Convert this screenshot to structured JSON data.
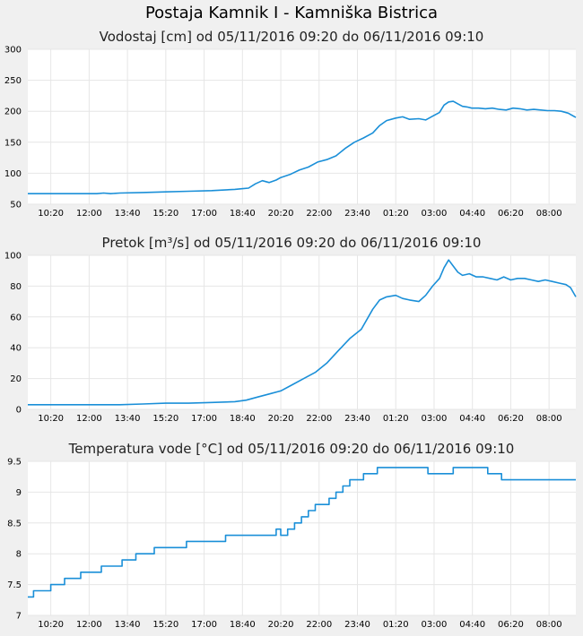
{
  "page": {
    "title": "Postaja Kamnik I - Kamniška Bistrica"
  },
  "colors": {
    "background": "#f0f0f0",
    "plot": "#ffffff",
    "line": "#1a8fd8",
    "grid": "#e6e6e6"
  },
  "chart_data": [
    {
      "type": "line",
      "title": "Vodostaj [cm] od 05/11/2016 09:20 do 06/11/2016 09:10",
      "xlabel": "",
      "ylabel": "",
      "ylim": [
        50,
        300
      ],
      "yticks": [
        50,
        100,
        150,
        200,
        250,
        300
      ],
      "ytick_labels": [
        "50",
        "100",
        "150",
        "200",
        "250",
        "300"
      ],
      "xlim": [
        0,
        23.83
      ],
      "xticks": [
        1,
        2.6667,
        4.3333,
        6,
        7.6667,
        9.3333,
        11,
        12.6667,
        14.3333,
        16,
        17.6667,
        19.3333,
        21,
        22.6667
      ],
      "xtick_labels": [
        "10:20",
        "12:00",
        "13:40",
        "15:20",
        "17:00",
        "18:40",
        "20:20",
        "22:00",
        "23:40",
        "01:20",
        "03:00",
        "04:40",
        "06:20",
        "08:00"
      ],
      "series": [
        {
          "name": "Vodostaj",
          "x": [
            0,
            1,
            2,
            3,
            3.3,
            3.6,
            4,
            5,
            6,
            7,
            8,
            9,
            9.3,
            9.6,
            9.9,
            10.2,
            10.5,
            10.8,
            11,
            11.4,
            11.8,
            12.2,
            12.6,
            13,
            13.4,
            13.8,
            14.2,
            14.6,
            15,
            15.3,
            15.6,
            16,
            16.3,
            16.6,
            17,
            17.3,
            17.6,
            17.9,
            18.1,
            18.3,
            18.5,
            18.7,
            18.9,
            19.1,
            19.3,
            19.6,
            19.9,
            20.2,
            20.5,
            20.8,
            21.1,
            21.4,
            21.7,
            22,
            22.3,
            22.6,
            22.9,
            23.2,
            23.5,
            23.83
          ],
          "y": [
            67,
            67,
            67,
            67,
            68,
            67,
            68,
            69,
            70,
            71,
            72,
            74,
            75,
            76,
            83,
            88,
            85,
            89,
            93,
            98,
            105,
            110,
            118,
            122,
            128,
            140,
            150,
            157,
            165,
            177,
            185,
            189,
            191,
            187,
            188,
            186,
            192,
            198,
            210,
            215,
            216,
            212,
            208,
            207,
            205,
            205,
            204,
            205,
            203,
            202,
            205,
            204,
            202,
            203,
            202,
            201,
            201,
            200,
            197,
            190
          ]
        }
      ]
    },
    {
      "type": "line",
      "title": "Pretok [m³/s] od 05/11/2016 09:20 do 06/11/2016 09:10",
      "xlabel": "",
      "ylabel": "",
      "ylim": [
        0,
        100
      ],
      "yticks": [
        0,
        20,
        40,
        60,
        80,
        100
      ],
      "ytick_labels": [
        "0",
        "20",
        "40",
        "60",
        "80",
        "100"
      ],
      "xlim": [
        0,
        23.83
      ],
      "xticks": [
        1,
        2.6667,
        4.3333,
        6,
        7.6667,
        9.3333,
        11,
        12.6667,
        14.3333,
        16,
        17.6667,
        19.3333,
        21,
        22.6667
      ],
      "xtick_labels": [
        "10:20",
        "12:00",
        "13:40",
        "15:20",
        "17:00",
        "18:40",
        "20:20",
        "22:00",
        "23:40",
        "01:20",
        "03:00",
        "04:40",
        "06:20",
        "08:00"
      ],
      "series": [
        {
          "name": "Pretok",
          "x": [
            0,
            1,
            2,
            3,
            4,
            5,
            6,
            7,
            8,
            9,
            9.5,
            10,
            10.5,
            11,
            11.5,
            12,
            12.5,
            13,
            13.5,
            14,
            14.5,
            15,
            15.3,
            15.6,
            16,
            16.3,
            16.6,
            17,
            17.3,
            17.6,
            17.9,
            18.1,
            18.3,
            18.5,
            18.7,
            18.9,
            19.2,
            19.5,
            19.8,
            20.1,
            20.4,
            20.7,
            21,
            21.3,
            21.6,
            21.9,
            22.2,
            22.5,
            22.8,
            23.1,
            23.4,
            23.6,
            23.83
          ],
          "y": [
            3,
            3,
            3,
            3,
            3,
            3.5,
            4,
            4,
            4.5,
            5,
            6,
            8,
            10,
            12,
            16,
            20,
            24,
            30,
            38,
            46,
            52,
            65,
            71,
            73,
            74,
            72,
            71,
            70,
            74,
            80,
            85,
            92,
            97,
            93,
            89,
            87,
            88,
            86,
            86,
            85,
            84,
            86,
            84,
            85,
            85,
            84,
            83,
            84,
            83,
            82,
            81,
            79,
            73
          ]
        }
      ]
    },
    {
      "type": "line",
      "title": "Temperatura vode [°C] od 05/11/2016 09:20 do 06/11/2016 09:10",
      "xlabel": "",
      "ylabel": "",
      "ylim": [
        7,
        9.5
      ],
      "yticks": [
        7,
        7.5,
        8,
        8.5,
        9,
        9.5
      ],
      "ytick_labels": [
        "7",
        "7.5",
        "8",
        "8.5",
        "9",
        "9.5"
      ],
      "xlim": [
        0,
        23.83
      ],
      "xticks": [
        1,
        2.6667,
        4.3333,
        6,
        7.6667,
        9.3333,
        11,
        12.6667,
        14.3333,
        16,
        17.6667,
        19.3333,
        21,
        22.6667
      ],
      "xtick_labels": [
        "10:20",
        "12:00",
        "13:40",
        "15:20",
        "17:00",
        "18:40",
        "20:20",
        "22:00",
        "23:40",
        "01:20",
        "03:00",
        "04:40",
        "06:20",
        "08:00"
      ],
      "series": [
        {
          "name": "Temperatura",
          "step": true,
          "x": [
            0,
            0.25,
            0.6,
            1,
            1.3,
            1.6,
            1.9,
            2.3,
            2.8,
            3.2,
            3.6,
            4.1,
            4.7,
            5.5,
            6.9,
            8.6,
            10.8,
            11,
            11.3,
            11.6,
            11.9,
            12.2,
            12.5,
            12.8,
            13.1,
            13.4,
            13.7,
            14,
            14.3,
            14.6,
            14.9,
            15.2,
            15.6,
            16.0,
            17.4,
            18.5,
            19.0,
            20.0,
            20.6,
            23.83
          ],
          "y": [
            7.3,
            7.4,
            7.4,
            7.5,
            7.5,
            7.6,
            7.6,
            7.7,
            7.7,
            7.8,
            7.8,
            7.9,
            8.0,
            8.1,
            8.2,
            8.3,
            8.4,
            8.3,
            8.4,
            8.5,
            8.6,
            8.7,
            8.8,
            8.8,
            8.9,
            9.0,
            9.1,
            9.2,
            9.2,
            9.3,
            9.3,
            9.4,
            9.4,
            9.4,
            9.3,
            9.4,
            9.4,
            9.3,
            9.2,
            9.2
          ]
        }
      ]
    }
  ]
}
